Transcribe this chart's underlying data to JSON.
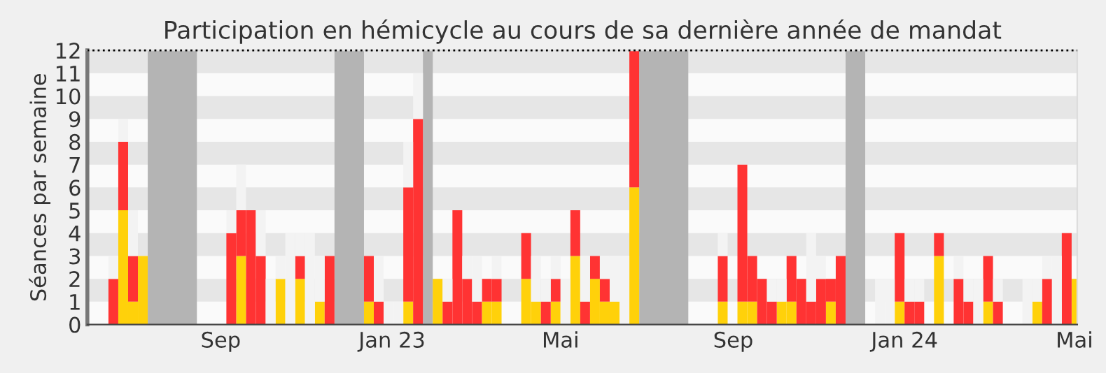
{
  "chart_data": {
    "type": "bar",
    "stacked": true,
    "title": "Participation en hémicycle au cours de sa dernière année de mandat",
    "ylabel": "Séances par semaine",
    "x": [
      "2022-06-13",
      "2022-06-20",
      "2022-06-27",
      "2022-07-04",
      "2022-09-05",
      "2022-09-12",
      "2022-09-19",
      "2022-09-26",
      "2022-10-03",
      "2022-10-10",
      "2022-10-17",
      "2022-10-24",
      "2022-10-31",
      "2022-11-07",
      "2022-11-14",
      "2022-12-12",
      "2022-12-19",
      "2022-12-26",
      "2023-01-02",
      "2023-01-09",
      "2023-01-16",
      "2023-01-30",
      "2023-02-06",
      "2023-02-13",
      "2023-02-20",
      "2023-02-27",
      "2023-03-06",
      "2023-03-13",
      "2023-04-03",
      "2023-04-10",
      "2023-04-17",
      "2023-04-24",
      "2023-05-01",
      "2023-05-08",
      "2023-05-15",
      "2023-05-22",
      "2023-05-29",
      "2023-06-05",
      "2023-06-12",
      "2023-06-19",
      "2023-08-21",
      "2023-09-04",
      "2023-09-11",
      "2023-09-18",
      "2023-09-25",
      "2023-10-02",
      "2023-10-09",
      "2023-10-16",
      "2023-10-23",
      "2023-10-30",
      "2023-11-06",
      "2023-11-13",
      "2023-12-11",
      "2023-12-18",
      "2023-12-25",
      "2024-01-01",
      "2024-01-08",
      "2024-01-22",
      "2024-02-05",
      "2024-02-12",
      "2024-02-19",
      "2024-02-26",
      "2024-03-04",
      "2024-03-25",
      "2024-04-01",
      "2024-04-08",
      "2024-04-15",
      "2024-04-22",
      "2024-04-29"
    ],
    "series": [
      {
        "color": "#ffd10a",
        "values": [
          0,
          5,
          1,
          3,
          0,
          3,
          0,
          0,
          0,
          2,
          0,
          2,
          0,
          1,
          0,
          1,
          0,
          0,
          0,
          1,
          0,
          2,
          0,
          0,
          0,
          0,
          1,
          1,
          2,
          1,
          0,
          1,
          0,
          3,
          0,
          2,
          1,
          1,
          0,
          6,
          1,
          1,
          1,
          0,
          0,
          1,
          1,
          0,
          0,
          0,
          1,
          0,
          0,
          0,
          1,
          0,
          0,
          3,
          0,
          0,
          0,
          1,
          0,
          0,
          1,
          0,
          0,
          0,
          2
        ]
      },
      {
        "color": "#ff3333",
        "values": [
          2,
          3,
          2,
          0,
          4,
          2,
          5,
          3,
          0,
          0,
          0,
          1,
          0,
          0,
          3,
          2,
          1,
          0,
          0,
          5,
          9,
          0,
          1,
          5,
          2,
          1,
          1,
          1,
          2,
          0,
          1,
          1,
          0,
          2,
          1,
          1,
          1,
          0,
          0,
          6,
          2,
          6,
          2,
          2,
          1,
          0,
          2,
          2,
          1,
          2,
          1,
          3,
          0,
          0,
          3,
          1,
          1,
          1,
          2,
          1,
          0,
          2,
          1,
          0,
          0,
          2,
          0,
          4,
          0
        ]
      },
      {
        "color": "#f3f3f3",
        "values": [
          1,
          1,
          2,
          0,
          1,
          2,
          0,
          2,
          2,
          1,
          4,
          1,
          4,
          2,
          0,
          0,
          2,
          1,
          1,
          2,
          2,
          0,
          1,
          0,
          1,
          2,
          0,
          1,
          0,
          2,
          1,
          1,
          2,
          0,
          2,
          0,
          1,
          2,
          3,
          0,
          1,
          0,
          0,
          0,
          1,
          1,
          0,
          0,
          3,
          1,
          0,
          0,
          2,
          2,
          0,
          1,
          1,
          0,
          1,
          1,
          2,
          0,
          1,
          2,
          1,
          1,
          3,
          0,
          0
        ]
      }
    ],
    "bands": [
      {
        "axis": "x",
        "from": "2022-07-11",
        "to": "2022-08-15",
        "color": "#b4b4b4"
      },
      {
        "axis": "x",
        "from": "2022-11-21",
        "to": "2022-12-12",
        "color": "#b4b4b4"
      },
      {
        "axis": "x",
        "from": "2023-01-23",
        "to": "2023-01-30",
        "color": "#b4b4b4"
      },
      {
        "axis": "x",
        "from": "2023-06-26",
        "to": "2023-07-31",
        "color": "#b4b4b4"
      },
      {
        "axis": "x",
        "from": "2023-11-20",
        "to": "2023-12-04",
        "color": "#b4b4b4"
      }
    ],
    "ref_lines": [
      {
        "axis": "y",
        "value": 12,
        "line_style": "dotted",
        "color": "#000000"
      }
    ],
    "xlim": [
      "2022-05-29",
      "2024-05-03"
    ],
    "xticks": [
      {
        "value": "2022-09-01",
        "label": "Sep"
      },
      {
        "value": "2023-01-01",
        "label": "Jan 23"
      },
      {
        "value": "2023-05-01",
        "label": "Mai"
      },
      {
        "value": "2023-09-01",
        "label": "Sep"
      },
      {
        "value": "2024-01-01",
        "label": "Jan 24"
      },
      {
        "value": "2024-05-01",
        "label": "Mai"
      }
    ],
    "ylim": [
      0,
      12
    ],
    "yticks": [
      0,
      1,
      2,
      3,
      4,
      5,
      6,
      7,
      8,
      9,
      10,
      11,
      12
    ],
    "legend": false
  }
}
